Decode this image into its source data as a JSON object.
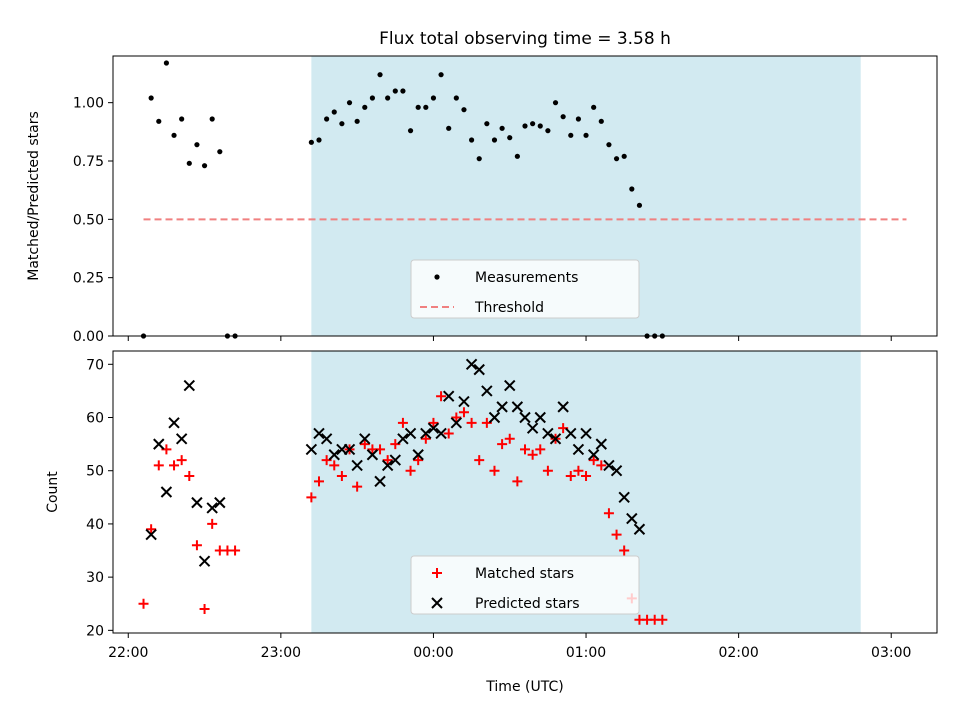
{
  "chart_data": [
    {
      "type": "scatter",
      "title": "Flux total observing time = 3.58 h",
      "ylabel": "Matched/Predicted stars",
      "xlabel": "",
      "xlim": [
        "21:54",
        "03:18"
      ],
      "ylim": [
        0,
        1.2
      ],
      "yticks": [
        "0.00",
        "0.25",
        "0.50",
        "0.75",
        "1.00"
      ],
      "shaded_region": [
        "23:12",
        "02:48"
      ],
      "shade_color": "#add8e6",
      "threshold": {
        "name": "Threshold",
        "value": 0.5,
        "x": [
          "22:06",
          "03:06"
        ],
        "color": "#f08080"
      },
      "legend": {
        "placement": "lower center",
        "entries": [
          "Measurements",
          "Threshold"
        ]
      },
      "series": [
        {
          "name": "Measurements",
          "marker": "dot",
          "color": "#000000",
          "points": [
            [
              "22:06",
              0.0
            ],
            [
              "22:09",
              1.02
            ],
            [
              "22:12",
              0.92
            ],
            [
              "22:15",
              1.17
            ],
            [
              "22:18",
              0.86
            ],
            [
              "22:21",
              0.93
            ],
            [
              "22:24",
              0.74
            ],
            [
              "22:27",
              0.82
            ],
            [
              "22:30",
              0.73
            ],
            [
              "22:33",
              0.93
            ],
            [
              "22:36",
              0.79
            ],
            [
              "22:39",
              0.0
            ],
            [
              "22:42",
              0.0
            ],
            [
              "23:12",
              0.83
            ],
            [
              "23:15",
              0.84
            ],
            [
              "23:18",
              0.93
            ],
            [
              "23:21",
              0.96
            ],
            [
              "23:24",
              0.91
            ],
            [
              "23:27",
              1.0
            ],
            [
              "23:30",
              0.92
            ],
            [
              "23:33",
              0.98
            ],
            [
              "23:36",
              1.02
            ],
            [
              "23:39",
              1.12
            ],
            [
              "23:42",
              1.02
            ],
            [
              "23:45",
              1.05
            ],
            [
              "23:48",
              1.05
            ],
            [
              "23:51",
              0.88
            ],
            [
              "23:54",
              0.98
            ],
            [
              "23:57",
              0.98
            ],
            [
              "00:00",
              1.02
            ],
            [
              "00:03",
              1.12
            ],
            [
              "00:06",
              0.89
            ],
            [
              "00:09",
              1.02
            ],
            [
              "00:12",
              0.97
            ],
            [
              "00:15",
              0.84
            ],
            [
              "00:18",
              0.76
            ],
            [
              "00:21",
              0.91
            ],
            [
              "00:24",
              0.84
            ],
            [
              "00:27",
              0.89
            ],
            [
              "00:30",
              0.85
            ],
            [
              "00:33",
              0.77
            ],
            [
              "00:36",
              0.9
            ],
            [
              "00:39",
              0.91
            ],
            [
              "00:42",
              0.9
            ],
            [
              "00:45",
              0.88
            ],
            [
              "00:48",
              1.0
            ],
            [
              "00:51",
              0.94
            ],
            [
              "00:54",
              0.86
            ],
            [
              "00:57",
              0.93
            ],
            [
              "01:00",
              0.86
            ],
            [
              "01:03",
              0.98
            ],
            [
              "01:06",
              0.92
            ],
            [
              "01:09",
              0.82
            ],
            [
              "01:12",
              0.76
            ],
            [
              "01:15",
              0.77
            ],
            [
              "01:18",
              0.63
            ],
            [
              "01:21",
              0.56
            ],
            [
              "01:24",
              0.0
            ],
            [
              "01:27",
              0.0
            ],
            [
              "01:30",
              0.0
            ]
          ]
        }
      ]
    },
    {
      "type": "scatter",
      "title": "",
      "ylabel": "Count",
      "xlabel": "Time (UTC)",
      "xlim": [
        "21:54",
        "03:18"
      ],
      "ylim": [
        19.5,
        72.5
      ],
      "yticks": [
        "20",
        "30",
        "40",
        "50",
        "60",
        "70"
      ],
      "xticks": [
        "22:00",
        "23:00",
        "00:00",
        "01:00",
        "02:00",
        "03:00"
      ],
      "shaded_region": [
        "23:12",
        "02:48"
      ],
      "shade_color": "#add8e6",
      "legend": {
        "placement": "lower center",
        "entries": [
          "Matched stars",
          "Predicted stars"
        ]
      },
      "series": [
        {
          "name": "Matched stars",
          "marker": "plus",
          "color": "#ff0000",
          "points": [
            [
              "22:06",
              25
            ],
            [
              "22:09",
              39
            ],
            [
              "22:12",
              51
            ],
            [
              "22:15",
              54
            ],
            [
              "22:18",
              51
            ],
            [
              "22:21",
              52
            ],
            [
              "22:24",
              49
            ],
            [
              "22:27",
              36
            ],
            [
              "22:30",
              24
            ],
            [
              "22:33",
              40
            ],
            [
              "22:36",
              35
            ],
            [
              "22:39",
              35
            ],
            [
              "22:42",
              35
            ],
            [
              "23:12",
              45
            ],
            [
              "23:15",
              48
            ],
            [
              "23:18",
              52
            ],
            [
              "23:21",
              51
            ],
            [
              "23:24",
              49
            ],
            [
              "23:27",
              54
            ],
            [
              "23:30",
              47
            ],
            [
              "23:33",
              55
            ],
            [
              "23:36",
              54
            ],
            [
              "23:39",
              54
            ],
            [
              "23:42",
              52
            ],
            [
              "23:45",
              55
            ],
            [
              "23:48",
              59
            ],
            [
              "23:51",
              50
            ],
            [
              "23:54",
              52
            ],
            [
              "23:57",
              56
            ],
            [
              "00:00",
              59
            ],
            [
              "00:03",
              64
            ],
            [
              "00:06",
              57
            ],
            [
              "00:09",
              60
            ],
            [
              "00:12",
              61
            ],
            [
              "00:15",
              59
            ],
            [
              "00:18",
              52
            ],
            [
              "00:21",
              59
            ],
            [
              "00:24",
              50
            ],
            [
              "00:27",
              55
            ],
            [
              "00:30",
              56
            ],
            [
              "00:33",
              48
            ],
            [
              "00:36",
              54
            ],
            [
              "00:39",
              53
            ],
            [
              "00:42",
              54
            ],
            [
              "00:45",
              50
            ],
            [
              "00:48",
              56
            ],
            [
              "00:51",
              58
            ],
            [
              "00:54",
              49
            ],
            [
              "00:57",
              50
            ],
            [
              "01:00",
              49
            ],
            [
              "01:03",
              52
            ],
            [
              "01:06",
              51
            ],
            [
              "01:09",
              42
            ],
            [
              "01:12",
              38
            ],
            [
              "01:15",
              35
            ],
            [
              "01:18",
              26
            ],
            [
              "01:21",
              22
            ],
            [
              "01:24",
              22
            ],
            [
              "01:27",
              22
            ],
            [
              "01:30",
              22
            ]
          ]
        },
        {
          "name": "Predicted stars",
          "marker": "x",
          "color": "#000000",
          "points": [
            [
              "22:09",
              38
            ],
            [
              "22:12",
              55
            ],
            [
              "22:15",
              46
            ],
            [
              "22:18",
              59
            ],
            [
              "22:21",
              56
            ],
            [
              "22:24",
              66
            ],
            [
              "22:27",
              44
            ],
            [
              "22:30",
              33
            ],
            [
              "22:33",
              43
            ],
            [
              "22:36",
              44
            ],
            [
              "23:12",
              54
            ],
            [
              "23:15",
              57
            ],
            [
              "23:18",
              56
            ],
            [
              "23:21",
              53
            ],
            [
              "23:24",
              54
            ],
            [
              "23:27",
              54
            ],
            [
              "23:30",
              51
            ],
            [
              "23:33",
              56
            ],
            [
              "23:36",
              53
            ],
            [
              "23:39",
              48
            ],
            [
              "23:42",
              51
            ],
            [
              "23:45",
              52
            ],
            [
              "23:48",
              56
            ],
            [
              "23:51",
              57
            ],
            [
              "23:54",
              53
            ],
            [
              "23:57",
              57
            ],
            [
              "00:00",
              58
            ],
            [
              "00:03",
              57
            ],
            [
              "00:06",
              64
            ],
            [
              "00:09",
              59
            ],
            [
              "00:12",
              63
            ],
            [
              "00:15",
              70
            ],
            [
              "00:18",
              69
            ],
            [
              "00:21",
              65
            ],
            [
              "00:24",
              60
            ],
            [
              "00:27",
              62
            ],
            [
              "00:30",
              66
            ],
            [
              "00:33",
              62
            ],
            [
              "00:36",
              60
            ],
            [
              "00:39",
              58
            ],
            [
              "00:42",
              60
            ],
            [
              "00:45",
              57
            ],
            [
              "00:48",
              56
            ],
            [
              "00:51",
              62
            ],
            [
              "00:54",
              57
            ],
            [
              "00:57",
              54
            ],
            [
              "01:00",
              57
            ],
            [
              "01:03",
              53
            ],
            [
              "01:06",
              55
            ],
            [
              "01:09",
              51
            ],
            [
              "01:12",
              50
            ],
            [
              "01:15",
              45
            ],
            [
              "01:18",
              41
            ],
            [
              "01:21",
              39
            ]
          ]
        }
      ]
    }
  ]
}
